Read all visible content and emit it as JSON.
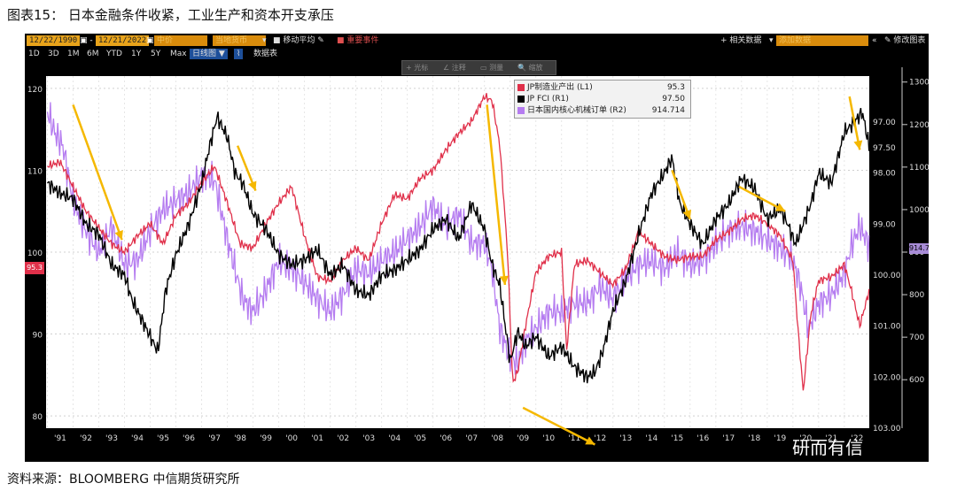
{
  "title": "图表15： 日本金融条件收紧，工业生产和资本开支承压",
  "source": "资料来源：BLOOMBERG  中信期货研究所",
  "watermark": "研而有信",
  "toolbar": {
    "start_date": "12/22/1990",
    "end_date": "12/21/2022",
    "price_field": "中价",
    "currency": "当地货币",
    "moving_avg": "移动平均",
    "events": "重要事件",
    "periods": [
      "1D",
      "3D",
      "1M",
      "6M",
      "YTD",
      "1Y",
      "5Y",
      "Max"
    ],
    "chart_type": "日线图",
    "data_table": "数据表",
    "related_data": "+ 相关数据",
    "add_data_placeholder": "添加数据",
    "edit_chart": "修改图表",
    "tools": [
      "+ 光标",
      "∠ 注释",
      "▭ 测量",
      "🔍 缩放"
    ]
  },
  "colors": {
    "manufacturing": "#e0304a",
    "fci": "#000000",
    "orders": "#b57cf0",
    "arrow": "#f5b800"
  },
  "chart_data": {
    "type": "line",
    "title": "",
    "x_range": [
      1990.95,
      2022.97
    ],
    "x_ticks": [
      "'91",
      "'92",
      "'93",
      "'94",
      "'95",
      "'96",
      "'97",
      "'98",
      "'99",
      "'00",
      "'01",
      "'02",
      "'03",
      "'04",
      "'05",
      "'06",
      "'07",
      "'08",
      "'09",
      "'10",
      "'11",
      "'12",
      "'13",
      "'14",
      "'15",
      "'16",
      "'17",
      "'18",
      "'19",
      "'20",
      "'21",
      "'22"
    ],
    "left_axis": {
      "min": 78.5,
      "max": 121.5,
      "ticks": [
        80,
        90,
        100,
        110,
        120
      ]
    },
    "right_axis_1": {
      "min": 96.1,
      "max": 103.0,
      "inverted": true,
      "ticks": [
        "97.00",
        "97.50",
        "98.00",
        "99.00",
        "100.00",
        "101.00",
        "102.00",
        "103.00"
      ]
    },
    "right_axis_2": {
      "min": 486,
      "max": 1314,
      "ticks": [
        600,
        700,
        800,
        900,
        1000,
        1100,
        1200,
        1300
      ]
    },
    "last_left_label": "95.3",
    "last_right_label": "914.7",
    "series": [
      {
        "name": "JP制造业产出 (L1)",
        "last": "95.3",
        "axis": "left",
        "x": [
          1991.0,
          1991.5,
          1992.0,
          1992.5,
          1993.0,
          1993.5,
          1994.0,
          1994.5,
          1995.0,
          1995.5,
          1996.0,
          1996.5,
          1997.0,
          1997.5,
          1998.0,
          1998.5,
          1999.0,
          1999.5,
          2000.0,
          2000.5,
          2001.0,
          2001.5,
          2002.0,
          2002.5,
          2003.0,
          2003.5,
          2004.0,
          2004.5,
          2005.0,
          2005.5,
          2006.0,
          2006.5,
          2007.0,
          2007.5,
          2008.0,
          2008.3,
          2008.6,
          2008.9,
          2009.1,
          2009.3,
          2009.6,
          2010.0,
          2010.5,
          2011.0,
          2011.2,
          2011.5,
          2012.0,
          2012.5,
          2013.0,
          2013.5,
          2014.0,
          2014.5,
          2015.0,
          2015.5,
          2016.0,
          2016.5,
          2017.0,
          2017.5,
          2018.0,
          2018.5,
          2019.0,
          2019.5,
          2020.0,
          2020.2,
          2020.4,
          2020.7,
          2021.0,
          2021.5,
          2022.0,
          2022.3,
          2022.6,
          2022.97
        ],
        "values": [
          110.5,
          111.0,
          108.0,
          105.0,
          103.0,
          101.0,
          100.0,
          102.0,
          103.5,
          101.0,
          104.5,
          106.0,
          108.5,
          110.5,
          106.0,
          101.0,
          100.5,
          103.5,
          106.0,
          108.0,
          102.0,
          97.0,
          96.5,
          99.0,
          100.5,
          99.0,
          103.5,
          107.0,
          106.5,
          109.0,
          110.0,
          112.5,
          114.5,
          116.0,
          119.0,
          118.5,
          113.0,
          100.0,
          84.0,
          85.5,
          91.0,
          97.5,
          99.5,
          100.0,
          88.0,
          98.5,
          99.0,
          97.5,
          96.0,
          98.0,
          102.5,
          101.0,
          99.5,
          99.0,
          99.5,
          99.5,
          101.5,
          102.5,
          104.0,
          104.5,
          103.5,
          102.0,
          99.0,
          90.5,
          83.0,
          92.5,
          96.5,
          97.0,
          98.5,
          95.0,
          91.0,
          95.3
        ]
      },
      {
        "name": "JP FCI (R1)",
        "last": "97.50",
        "axis": "right1",
        "x": [
          1991.0,
          1991.5,
          1992.0,
          1992.5,
          1993.0,
          1993.5,
          1994.0,
          1994.3,
          1994.6,
          1995.0,
          1995.3,
          1995.6,
          1996.0,
          1996.5,
          1997.0,
          1997.3,
          1997.6,
          1998.0,
          1998.3,
          1998.6,
          1999.0,
          1999.5,
          2000.0,
          2000.5,
          2001.0,
          2001.5,
          2002.0,
          2002.5,
          2003.0,
          2003.5,
          2004.0,
          2004.5,
          2005.0,
          2005.5,
          2006.0,
          2006.5,
          2007.0,
          2007.5,
          2008.0,
          2008.3,
          2008.6,
          2009.0,
          2009.3,
          2009.6,
          2010.0,
          2010.5,
          2011.0,
          2011.5,
          2012.0,
          2012.3,
          2012.6,
          2013.0,
          2013.5,
          2014.0,
          2014.5,
          2015.0,
          2015.3,
          2015.6,
          2016.0,
          2016.5,
          2017.0,
          2017.5,
          2018.0,
          2018.5,
          2019.0,
          2019.5,
          2019.8,
          2020.1,
          2020.4,
          2020.7,
          2021.0,
          2021.5,
          2022.0,
          2022.4,
          2022.7,
          2022.97
        ],
        "values": [
          98.2,
          98.4,
          98.5,
          99.0,
          99.2,
          99.8,
          100.0,
          100.5,
          100.8,
          101.2,
          101.5,
          100.3,
          99.6,
          99.0,
          98.2,
          97.5,
          96.9,
          97.3,
          98.0,
          98.2,
          98.8,
          99.1,
          99.6,
          99.8,
          99.7,
          99.5,
          100.0,
          99.8,
          100.3,
          100.4,
          100.0,
          99.9,
          99.7,
          99.5,
          99.1,
          98.9,
          99.3,
          98.6,
          99.1,
          99.8,
          100.2,
          101.7,
          101.1,
          101.4,
          101.2,
          101.6,
          101.4,
          101.8,
          102.0,
          101.9,
          101.5,
          100.7,
          100.1,
          99.2,
          98.4,
          98.0,
          97.7,
          98.6,
          99.0,
          99.4,
          98.9,
          98.6,
          98.1,
          98.3,
          98.9,
          98.7,
          99.0,
          99.4,
          99.0,
          98.6,
          98.0,
          98.2,
          97.2,
          97.0,
          96.8,
          97.5
        ]
      },
      {
        "name": "日本国内核心机械订单 (R2)",
        "last": "914.714",
        "axis": "right2",
        "x": [
          1991.0,
          1991.3,
          1991.6,
          1992.0,
          1992.5,
          1993.0,
          1993.5,
          1994.0,
          1994.5,
          1995.0,
          1995.5,
          1996.0,
          1996.5,
          1997.0,
          1997.5,
          1998.0,
          1998.3,
          1998.6,
          1999.0,
          1999.5,
          2000.0,
          2000.5,
          2001.0,
          2001.5,
          2002.0,
          2002.5,
          2003.0,
          2003.5,
          2004.0,
          2004.5,
          2005.0,
          2005.5,
          2006.0,
          2006.5,
          2007.0,
          2007.5,
          2008.0,
          2008.3,
          2008.6,
          2009.0,
          2009.3,
          2009.6,
          2010.0,
          2010.5,
          2011.0,
          2011.5,
          2012.0,
          2012.5,
          2013.0,
          2013.5,
          2014.0,
          2014.5,
          2015.0,
          2015.5,
          2016.0,
          2016.5,
          2017.0,
          2017.5,
          2018.0,
          2018.5,
          2019.0,
          2019.5,
          2020.0,
          2020.3,
          2020.6,
          2021.0,
          2021.5,
          2022.0,
          2022.3,
          2022.6,
          2022.97
        ],
        "values": [
          1230,
          1180,
          1150,
          1020,
          950,
          900,
          960,
          870,
          880,
          950,
          1000,
          1020,
          1040,
          1080,
          1070,
          930,
          860,
          790,
          760,
          810,
          880,
          860,
          830,
          790,
          760,
          800,
          860,
          850,
          880,
          900,
          930,
          960,
          1010,
          960,
          990,
          920,
          920,
          860,
          720,
          650,
          640,
          690,
          720,
          760,
          760,
          780,
          780,
          820,
          790,
          840,
          870,
          880,
          860,
          900,
          870,
          880,
          920,
          950,
          960,
          950,
          930,
          910,
          880,
          820,
          720,
          780,
          800,
          850,
          920,
          960,
          914.714
        ]
      }
    ]
  }
}
